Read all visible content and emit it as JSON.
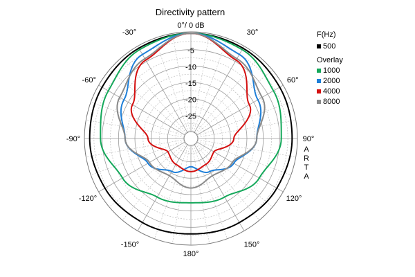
{
  "chart_data": {
    "type": "polar",
    "title": "Directivity pattern",
    "top_label": "0°/ 0 dB",
    "r_ticks": [
      "-5",
      "-10",
      "-15",
      "-20",
      "-25"
    ],
    "r_range_db": [
      -30,
      0
    ],
    "angle_labels": [
      "-30°",
      "30°",
      "-60°",
      "60°",
      "-90°",
      "90°",
      "-120°",
      "120°",
      "-150°",
      "150°",
      "180°"
    ],
    "legend": {
      "header": "F(Hz)",
      "overlay_label": "Overlay",
      "primary": {
        "name": "500",
        "color": "#000000"
      },
      "overlays": [
        {
          "name": "1000",
          "color": "#14a85a"
        },
        {
          "name": "2000",
          "color": "#1e7fd8"
        },
        {
          "name": "4000",
          "color": "#d41010"
        },
        {
          "name": "8000",
          "color": "#8a8a8a"
        }
      ]
    },
    "brand": [
      "A",
      "R",
      "T",
      "A"
    ],
    "series": [
      {
        "name": "500",
        "color": "#000000",
        "angles": [
          0,
          30,
          60,
          90,
          120,
          150,
          180
        ],
        "db": [
          0,
          -0.3,
          -0.8,
          -1.2,
          -1.8,
          -2.5,
          -3.0
        ]
      },
      {
        "name": "1000",
        "color": "#14a85a",
        "angles": [
          0,
          30,
          60,
          90,
          120,
          150,
          180
        ],
        "db": [
          0,
          -0.8,
          -3.0,
          -4.5,
          -8.0,
          -11.5,
          -12.5
        ]
      },
      {
        "name": "2000",
        "color": "#1e7fd8",
        "angles": [
          0,
          30,
          60,
          90,
          120,
          150,
          180
        ],
        "db": [
          0,
          -2.5,
          -8.5,
          -12.0,
          -17.0,
          -20.5,
          -23.5
        ]
      },
      {
        "name": "4000",
        "color": "#d41010",
        "angles": [
          0,
          30,
          60,
          90,
          120,
          150,
          180
        ],
        "db": [
          0,
          -4.5,
          -11.5,
          -19.0,
          -24.0,
          -23.0,
          -22.0
        ]
      },
      {
        "name": "8000",
        "color": "#8a8a8a",
        "angles": [
          0,
          30,
          60,
          90,
          120,
          150,
          180
        ],
        "db": [
          0,
          -4.0,
          -7.0,
          -12.0,
          -17.5,
          -19.0,
          -17.0
        ]
      }
    ]
  }
}
